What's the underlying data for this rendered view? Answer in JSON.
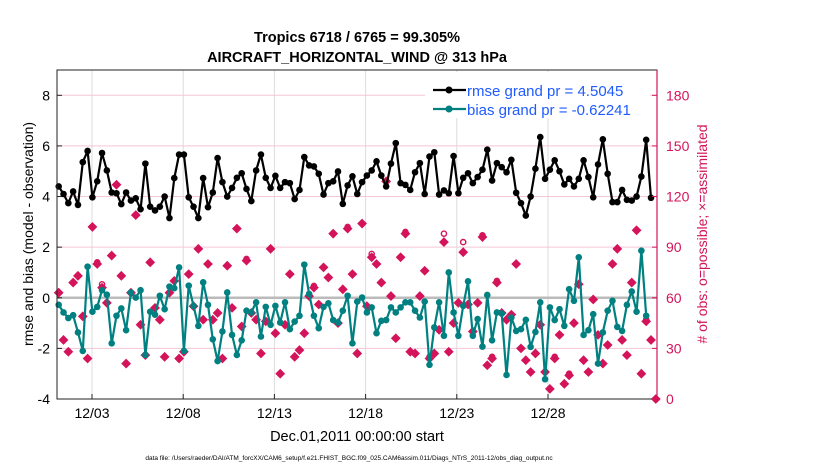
{
  "chart_data": {
    "type": "line",
    "title": [
      "Tropics 6718 / 6765 = 99.305%",
      "AIRCRAFT_HORIZONTAL_WIND @ 313 hPa"
    ],
    "xlabel": "Dec.01,2011 00:00:00 start",
    "ylabel_left": "rmse and bias (model - observation)",
    "ylabel_right": "# of obs: o=possible; ×=assimilated",
    "footer": "data file: /Users/raeder/DAI/ATM_forcXX/CAM6_setup/f.e21.FHIST_BGC.f09_025.CAM6assim.011/Diags_NTrS_2011-12/obs_diag_output.nc",
    "x_tick_labels": [
      "12/03",
      "12/08",
      "12/13",
      "12/18",
      "12/23",
      "12/28"
    ],
    "y_left_ticks": [
      -4,
      -2,
      0,
      2,
      4,
      6,
      8
    ],
    "y_left_range": [
      -4,
      9
    ],
    "y_right_ticks": [
      0,
      30,
      60,
      90,
      120,
      150,
      180
    ],
    "y_right_range": [
      0,
      195
    ],
    "grid": true,
    "legend_position": "top-right",
    "colors": {
      "rmse": "#000000",
      "bias": "#008080",
      "obs": "#D4145A",
      "legend_text": "#1F5BFF",
      "zero_line": "#BBBBBB"
    },
    "series": [
      {
        "name": "rmse grand pr = 4.5045",
        "axis": "left",
        "values": [
          4.4,
          4.1,
          3.74,
          4.2,
          3.67,
          5.36,
          5.8,
          3.97,
          4.6,
          5.72,
          5.03,
          4.16,
          4.13,
          3.7,
          4.16,
          3.84,
          3.93,
          3.5,
          5.3,
          3.6,
          3.45,
          3.6,
          4.0,
          3.15,
          4.73,
          5.66,
          5.66,
          3.97,
          3.6,
          3.15,
          4.73,
          3.58,
          4.16,
          5.52,
          4.57,
          4.0,
          4.34,
          4.74,
          4.92,
          4.3,
          3.82,
          5.03,
          5.66,
          4.74,
          4.34,
          4.82,
          4.34,
          4.57,
          4.53,
          3.9,
          4.26,
          5.56,
          5.23,
          5.19,
          4.9,
          4.08,
          4.53,
          4.6,
          4.99,
          3.71,
          4.44,
          4.8,
          4.1,
          4.57,
          4.83,
          5.03,
          5.39,
          4.83,
          4.4,
          5.3,
          6.11,
          4.53,
          4.46,
          4.26,
          4.96,
          5.32,
          4.1,
          5.58,
          5.75,
          4.08,
          4.24,
          4.13,
          5.6,
          4.13,
          4.74,
          4.92,
          4.53,
          4.77,
          5.06,
          5.85,
          4.63,
          5.32,
          5.16,
          4.96,
          5.45,
          4.15,
          3.74,
          3.25,
          4.0,
          5.1,
          6.35,
          4.7,
          5.06,
          5.43,
          5.0,
          4.48,
          4.7,
          4.4,
          4.7,
          5.43,
          4.77,
          3.97,
          5.27,
          6.26,
          4.9,
          3.78,
          3.78,
          4.26,
          3.87,
          3.84,
          4.0,
          4.79,
          6.24,
          3.95
        ]
      },
      {
        "name": "bias grand pr = -0.62241",
        "axis": "left",
        "values": [
          -0.28,
          -0.58,
          -0.8,
          -0.69,
          -1.37,
          -2.1,
          1.23,
          -0.55,
          -0.36,
          0.3,
          0.12,
          -1.8,
          -0.71,
          -0.42,
          -1.28,
          0.21,
          0.01,
          0.3,
          -2.26,
          -0.55,
          -0.67,
          0.08,
          -0.45,
          0.44,
          0.38,
          1.2,
          -2.1,
          0.48,
          -0.32,
          -1.11,
          0.61,
          -0.28,
          -1.64,
          -2.5,
          -1.33,
          0.21,
          -1.47,
          -2.26,
          -1.68,
          -0.51,
          -0.58,
          -0.18,
          -1.53,
          -0.36,
          -1.07,
          -0.32,
          -0.98,
          -0.18,
          -1.24,
          -0.94,
          -0.71,
          1.31,
          0.15,
          -0.71,
          -1.2,
          -0.36,
          -0.22,
          -0.88,
          -0.98,
          -0.51,
          0.08,
          -1.8,
          -0.15,
          0.01,
          -0.58,
          -0.38,
          -1.4,
          -0.91,
          -0.88,
          -0.38,
          -0.58,
          -0.38,
          -0.18,
          -0.18,
          -0.51,
          -0.78,
          -0.15,
          -2.65,
          -1.17,
          -0.18,
          -1.5,
          1.0,
          -0.58,
          -1.5,
          -0.32,
          0.65,
          -1.5,
          -0.84,
          -1.93,
          0.11,
          -1.68,
          -0.58,
          -0.62,
          -3.05,
          -0.78,
          -1.31,
          -1.24,
          -0.87,
          -1.94,
          -1.35,
          -0.18,
          -3.22,
          -0.38,
          -0.88,
          -0.45,
          -1.11,
          0.34,
          -0.12,
          1.6,
          -1.47,
          -1.28,
          -0.65,
          -2.6,
          -1.37,
          -0.51,
          -0.12,
          -1.15,
          -1.31,
          -0.28,
          0.25,
          -0.55,
          1.86,
          -0.71
        ]
      },
      {
        "name": "assimilated",
        "axis": "right",
        "values": [
          63,
          35,
          28,
          69,
          73,
          49,
          24,
          102,
          80,
          66,
          57,
          85,
          127,
          73,
          21,
          63,
          109,
          44,
          26,
          81,
          54,
          47,
          25,
          63,
          70,
          24,
          28,
          74,
          55,
          89,
          47,
          80,
          47,
          51,
          24,
          79,
          54,
          101,
          43,
          82,
          51,
          47,
          27,
          46,
          89,
          39,
          15,
          44,
          74,
          25,
          29,
          39,
          61,
          66,
          56,
          78,
          72,
          98,
          45,
          65,
          101,
          74,
          27,
          104,
          55,
          84,
          80,
          69,
          129,
          61,
          36,
          84,
          98,
          28,
          27,
          61,
          76,
          24,
          27,
          41,
          93,
          28,
          45,
          57,
          87,
          56,
          40,
          57,
          96,
          20,
          24,
          69,
          51,
          47,
          50,
          80,
          30,
          23,
          16,
          27,
          44,
          16,
          6,
          24,
          38,
          9,
          14,
          45,
          68,
          23,
          16,
          59,
          38,
          21,
          32,
          80,
          89,
          35,
          26,
          69,
          100,
          15,
          46,
          35,
          0
        ]
      },
      {
        "name": "possible",
        "axis": "right",
        "values": [
          63,
          35,
          28,
          69,
          73,
          49,
          24,
          102,
          81,
          68,
          57,
          85,
          127,
          73,
          21,
          63,
          109,
          44,
          26,
          81,
          54,
          47,
          25,
          63,
          70,
          24,
          28,
          74,
          55,
          89,
          47,
          80,
          47,
          51,
          24,
          79,
          54,
          101,
          43,
          83,
          51,
          47,
          27,
          46,
          89,
          39,
          15,
          44,
          74,
          25,
          29,
          39,
          62,
          67,
          56,
          78,
          72,
          98,
          45,
          65,
          102,
          74,
          27,
          104,
          55,
          86,
          80,
          69,
          129,
          61,
          36,
          84,
          99,
          28,
          27,
          61,
          76,
          25,
          27,
          41,
          98,
          28,
          45,
          57,
          93,
          56,
          40,
          57,
          97,
          20,
          25,
          70,
          51,
          47,
          50,
          80,
          30,
          23,
          16,
          27,
          44,
          16,
          6,
          25,
          38,
          9,
          15,
          45,
          68,
          23,
          16,
          59,
          38,
          21,
          32,
          80,
          89,
          35,
          26,
          69,
          100,
          15,
          47,
          35,
          0
        ]
      }
    ]
  }
}
